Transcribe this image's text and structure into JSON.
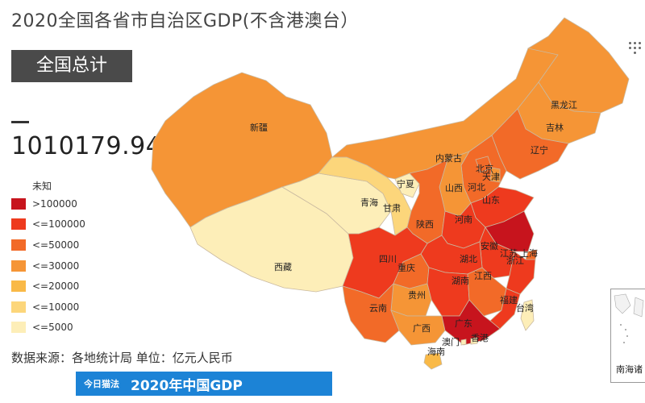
{
  "title": "2020全国各省市自治区GDP(不含港澳台）",
  "total_label": "全国总计",
  "total_value": "1010179.94",
  "legend": {
    "title": "未知",
    "items": [
      {
        "label": ">100000",
        "color": "#c7141d"
      },
      {
        "label": "<=100000",
        "color": "#ee3a1e"
      },
      {
        "label": "<=50000",
        "color": "#f26a28"
      },
      {
        "label": "<=30000",
        "color": "#f59536"
      },
      {
        "label": "<=20000",
        "color": "#f9b947"
      },
      {
        "label": "<=10000",
        "color": "#fcd67b"
      },
      {
        "label": "<=5000",
        "color": "#fdeeb8"
      }
    ]
  },
  "source": "数据来源：各地统计局 单位：亿元人民币",
  "banner": {
    "logo": "今日猫法",
    "text": "2020年中国GDP"
  },
  "inset_label": "南海诸",
  "provinces": [
    {
      "name": "新疆",
      "bin": 3
    },
    {
      "name": "西藏",
      "bin": 6
    },
    {
      "name": "青海",
      "bin": 6
    },
    {
      "name": "甘肃",
      "bin": 5
    },
    {
      "name": "宁夏",
      "bin": 6
    },
    {
      "name": "内蒙古",
      "bin": 3
    },
    {
      "name": "黑龙江",
      "bin": 3
    },
    {
      "name": "吉林",
      "bin": 3
    },
    {
      "name": "辽宁",
      "bin": 2
    },
    {
      "name": "北京",
      "bin": 2
    },
    {
      "name": "天津",
      "bin": 3
    },
    {
      "name": "河北",
      "bin": 2
    },
    {
      "name": "山西",
      "bin": 3
    },
    {
      "name": "山东",
      "bin": 1
    },
    {
      "name": "河南",
      "bin": 1
    },
    {
      "name": "陕西",
      "bin": 2
    },
    {
      "name": "四川",
      "bin": 1
    },
    {
      "name": "重庆",
      "bin": 2
    },
    {
      "name": "湖北",
      "bin": 1
    },
    {
      "name": "安徽",
      "bin": 1
    },
    {
      "name": "江苏",
      "bin": 0
    },
    {
      "name": "上海",
      "bin": 2
    },
    {
      "name": "浙江",
      "bin": 1
    },
    {
      "name": "湖南",
      "bin": 1
    },
    {
      "name": "江西",
      "bin": 2
    },
    {
      "name": "福建",
      "bin": 1
    },
    {
      "name": "贵州",
      "bin": 3
    },
    {
      "name": "云南",
      "bin": 2
    },
    {
      "name": "广西",
      "bin": 3
    },
    {
      "name": "广东",
      "bin": 0
    },
    {
      "name": "海南",
      "bin": 4
    },
    {
      "name": "台湾",
      "bin": 6
    },
    {
      "name": "香港",
      "bin": 6
    },
    {
      "name": "澳门",
      "bin": 6
    }
  ]
}
